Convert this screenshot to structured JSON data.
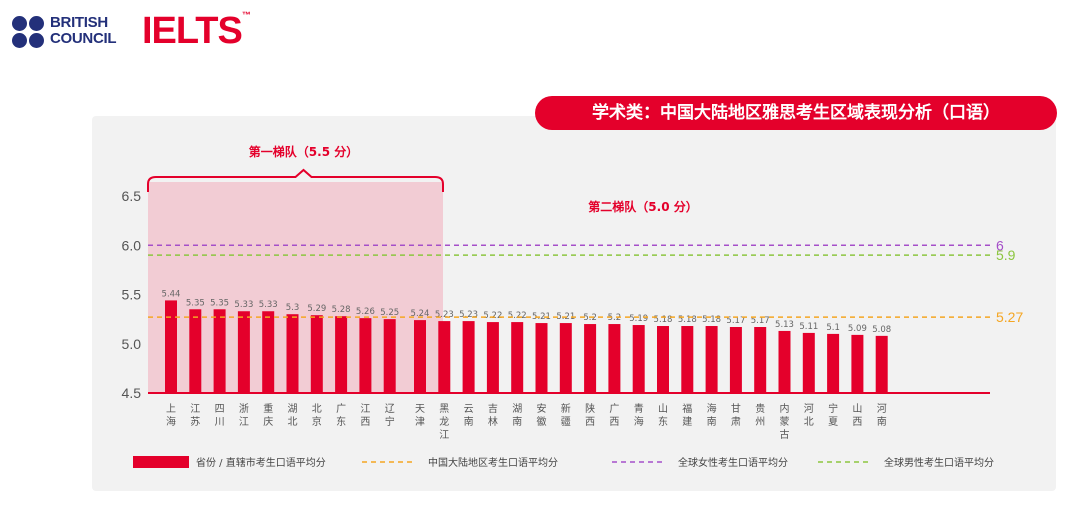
{
  "header": {
    "british_council_line1": "BRITISH",
    "british_council_line2": "COUNCIL",
    "ielts_logo": "IELTS",
    "trademark": "™"
  },
  "title": "学术类：中国大陆地区雅思考生区域表现分析（口语）",
  "tiers": {
    "tier1": "第一梯队（5.5 分）",
    "tier2": "第二梯队（5.0 分）"
  },
  "colors": {
    "bar": "#e4002b",
    "tier1_bg": "#f2ccd4",
    "national_avg": "#f5a623",
    "female_avg": "#a54fc9",
    "male_avg": "#8cc63f",
    "title_bg": "#e4002b"
  },
  "chart_data": {
    "type": "bar",
    "categories": [
      "上海",
      "江苏",
      "四川",
      "浙江",
      "重庆",
      "湖北",
      "北京",
      "广东",
      "江西",
      "辽宁",
      "天津",
      "黑龙江",
      "云南",
      "吉林",
      "湖南",
      "安徽",
      "新疆",
      "陕西",
      "广西",
      "青海",
      "山东",
      "福建",
      "海南",
      "甘肃",
      "贵州",
      "内蒙古",
      "河北",
      "宁夏",
      "山西",
      "河南"
    ],
    "values": [
      5.44,
      5.35,
      5.35,
      5.33,
      5.33,
      5.3,
      5.29,
      5.28,
      5.26,
      5.25,
      5.24,
      5.23,
      5.23,
      5.22,
      5.22,
      5.21,
      5.21,
      5.2,
      5.2,
      5.19,
      5.18,
      5.18,
      5.18,
      5.17,
      5.17,
      5.13,
      5.11,
      5.1,
      5.09,
      5.08
    ],
    "value_labels": [
      "5.44",
      "5.35",
      "5.35",
      "5.33",
      "5.33",
      "5.3",
      "5.29",
      "5.28",
      "5.26",
      "5.25",
      "5.24",
      "5.23",
      "5.23",
      "5.22",
      "5.22",
      "5.21",
      "5.21",
      "5.2",
      "5.2",
      "5.19",
      "5.18",
      "5.18",
      "5.18",
      "5.17",
      "5.17",
      "5.13",
      "5.11",
      "5.1",
      "5.09",
      "5.08"
    ],
    "ylim": [
      4.5,
      6.5
    ],
    "yticks": [
      "6.5",
      "6.0",
      "5.5",
      "5.0",
      "4.5"
    ],
    "reference_lines": [
      {
        "name": "中国大陆地区考生口语平均分",
        "value": 5.27,
        "label": "5.27",
        "color": "#f5a623"
      },
      {
        "name": "全球女性考生口语平均分",
        "value": 6,
        "label": "6",
        "color": "#a54fc9"
      },
      {
        "name": "全球男性考生口语平均分",
        "value": 5.9,
        "label": "5.9",
        "color": "#8cc63f"
      }
    ],
    "bar_legend": "省份 / 直辖市考生口语平均分",
    "tier1_count": 10,
    "legend_position": "bottom"
  }
}
